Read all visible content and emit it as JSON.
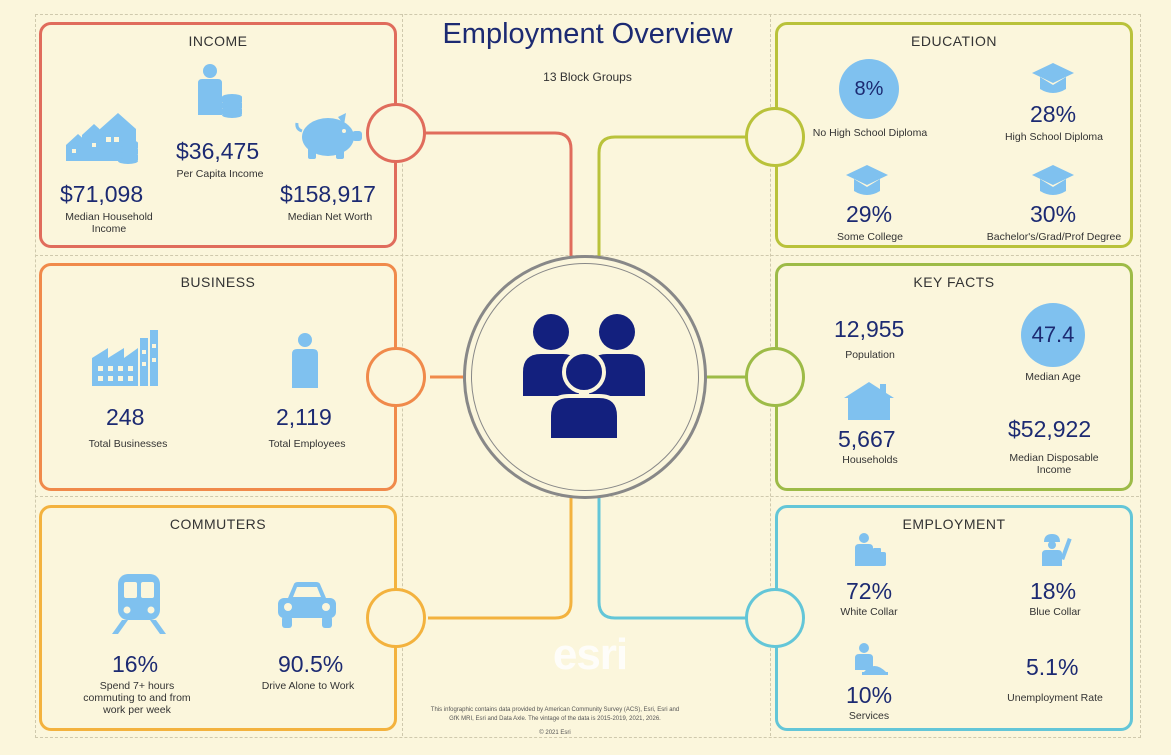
{
  "header": {
    "title": "Employment Overview",
    "subtitle": "13 Block Groups"
  },
  "colors": {
    "income": "#e06c5c",
    "business": "#f08a4b",
    "commuters": "#f3b23e",
    "education": "#b9c23a",
    "key_facts": "#9dbb47",
    "employment": "#63c6d8",
    "icon_blue": "#7fc1ef",
    "center_figure": "#13207e"
  },
  "income": {
    "title": "INCOME",
    "median_household_value": "$71,098",
    "median_household_label_1": "Median Household",
    "median_household_label_2": "Income",
    "per_capita_value": "$36,475",
    "per_capita_label": "Per Capita Income",
    "net_worth_value": "$158,917",
    "net_worth_label": "Median Net Worth"
  },
  "business": {
    "title": "BUSINESS",
    "businesses_value": "248",
    "businesses_label": "Total Businesses",
    "employees_value": "2,119",
    "employees_label": "Total Employees"
  },
  "commuters": {
    "title": "COMMUTERS",
    "long_commute_value": "16%",
    "long_commute_label_1": "Spend 7+ hours",
    "long_commute_label_2": "commuting to and from",
    "long_commute_label_3": "work per week",
    "drive_alone_value": "90.5%",
    "drive_alone_label": "Drive Alone to Work"
  },
  "education": {
    "title": "EDUCATION",
    "no_hs_value": "8%",
    "no_hs_label": "No High School Diploma",
    "hs_value": "28%",
    "hs_label": "High School Diploma",
    "some_college_value": "29%",
    "some_college_label": "Some College",
    "bachelors_value": "30%",
    "bachelors_label": "Bachelor's/Grad/Prof Degree"
  },
  "key_facts": {
    "title": "KEY FACTS",
    "population_value": "12,955",
    "population_label": "Population",
    "median_age_value": "47.4",
    "median_age_label": "Median Age",
    "households_value": "5,667",
    "households_label": "Households",
    "disposable_income_value": "$52,922",
    "disposable_income_label_1": "Median Disposable",
    "disposable_income_label_2": "Income"
  },
  "employment": {
    "title": "EMPLOYMENT",
    "white_collar_value": "72%",
    "white_collar_label": "White Collar",
    "blue_collar_value": "18%",
    "blue_collar_label": "Blue Collar",
    "services_value": "10%",
    "services_label": "Services",
    "unemployment_value": "5.1%",
    "unemployment_label": "Unemployment Rate"
  },
  "footer": {
    "logo": "esri",
    "source_note_1": "This infographic contains data provided by American Community Survey (ACS), Esri, Esri and",
    "source_note_2": "GfK MRI, Esri and Data Axle. The vintage of the data is 2015-2019, 2021, 2026.",
    "copyright": "© 2021 Esri"
  }
}
